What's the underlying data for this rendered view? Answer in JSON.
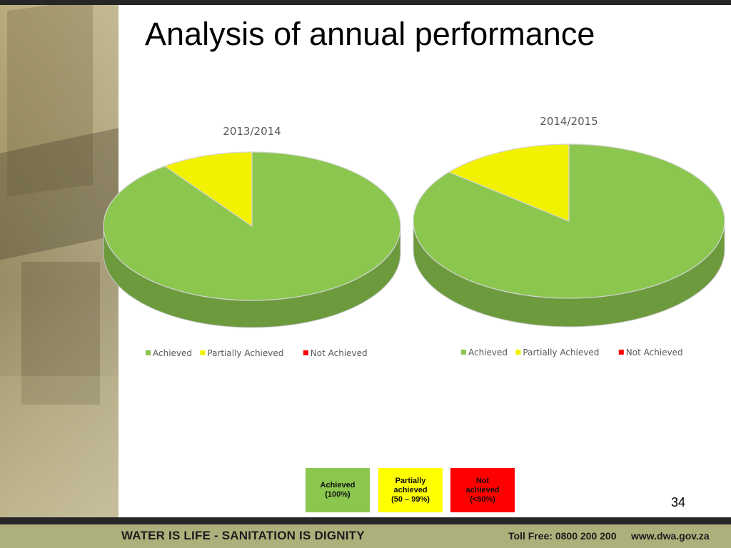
{
  "slide": {
    "title": "Analysis of annual performance",
    "page_number": "34"
  },
  "chart_data": [
    {
      "type": "pie",
      "title": "2013/2014",
      "categories": [
        "Achieved",
        "Partially Achieved",
        "Not Achieved"
      ],
      "values": [
        90,
        10,
        0
      ],
      "colors": [
        "#8bc64e",
        "#f2f200",
        "#ff0000"
      ],
      "legend": "bottom",
      "style": "3d"
    },
    {
      "type": "pie",
      "title": "2014/2015",
      "categories": [
        "Achieved",
        "Partially Achieved",
        "Not Achieved"
      ],
      "values": [
        86,
        14,
        0
      ],
      "colors": [
        "#8bc64e",
        "#f2f200",
        "#ff0000"
      ],
      "legend": "bottom",
      "style": "3d"
    }
  ],
  "key": [
    {
      "label": "Achieved\n(100%)",
      "color": "#8bc64e"
    },
    {
      "label": "Partially\nachieved\n(50 – 99%)",
      "color": "#ffff00"
    },
    {
      "label": "Not\nachieved\n(<50%)",
      "color": "#ff0000"
    }
  ],
  "footer": {
    "slogan": "WATER IS LIFE - SANITATION IS DIGNITY",
    "phone": "Toll Free: 0800 200 200",
    "website": "www.dwa.gov.za"
  }
}
